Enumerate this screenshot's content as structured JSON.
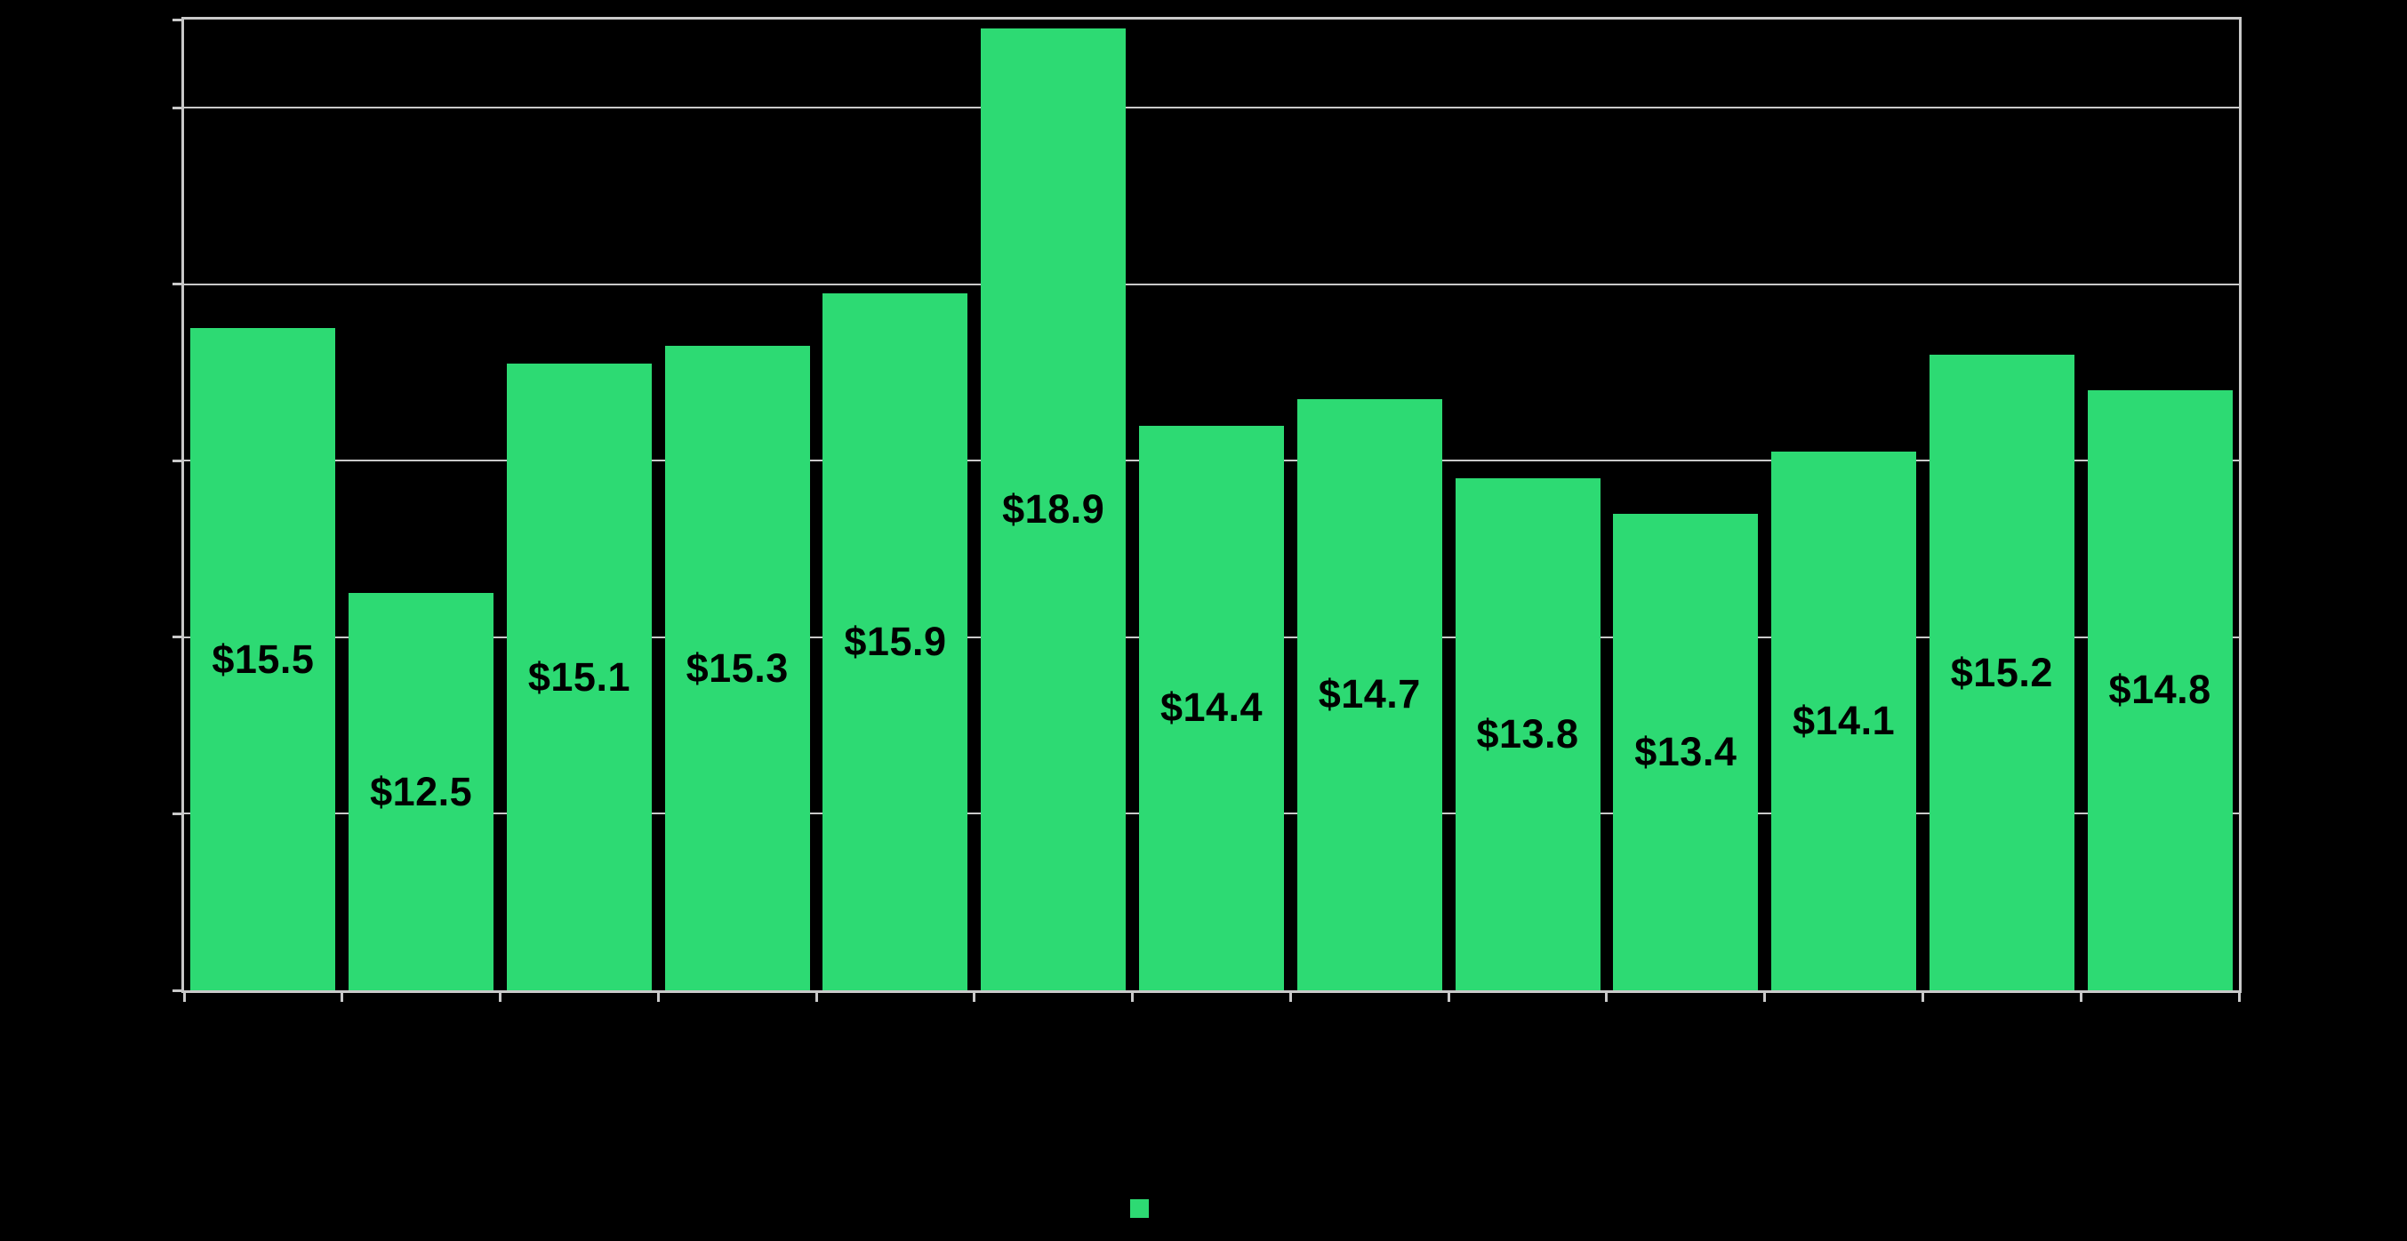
{
  "window": {
    "background": "#000000"
  },
  "chart_data": {
    "type": "bar",
    "title": "",
    "categories": [
      "",
      "",
      "",
      "",
      "",
      "",
      "",
      "",
      "",
      "",
      "",
      "",
      ""
    ],
    "series": [
      {
        "name": "",
        "values": [
          15.5,
          12.5,
          15.1,
          15.3,
          15.9,
          18.9,
          14.4,
          14.7,
          13.8,
          13.4,
          14.1,
          15.2,
          14.8
        ],
        "data_labels": [
          "$15.5",
          "$12.5",
          "$15.1",
          "$15.3",
          "$15.9",
          "$18.9",
          "$14.4",
          "$14.7",
          "$13.8",
          "$13.4",
          "$14.1",
          "$15.2",
          "$14.8"
        ]
      }
    ],
    "xlabel": "",
    "ylabel": "",
    "ylim": [
      8,
      19
    ],
    "y_gridline_values": [
      10,
      12,
      14,
      16,
      18
    ],
    "grid": true,
    "data_label_position": "inside-center",
    "legend_position": "bottom-center"
  },
  "style": {
    "background": "#000000",
    "bar_fill": "#2DDA73",
    "grid_color": "#C9C9C9",
    "axis_color": "#C9C9C9",
    "data_label_color": "#000000",
    "legend_marker_color": "#2DDA73"
  },
  "legend": {
    "label": ""
  }
}
